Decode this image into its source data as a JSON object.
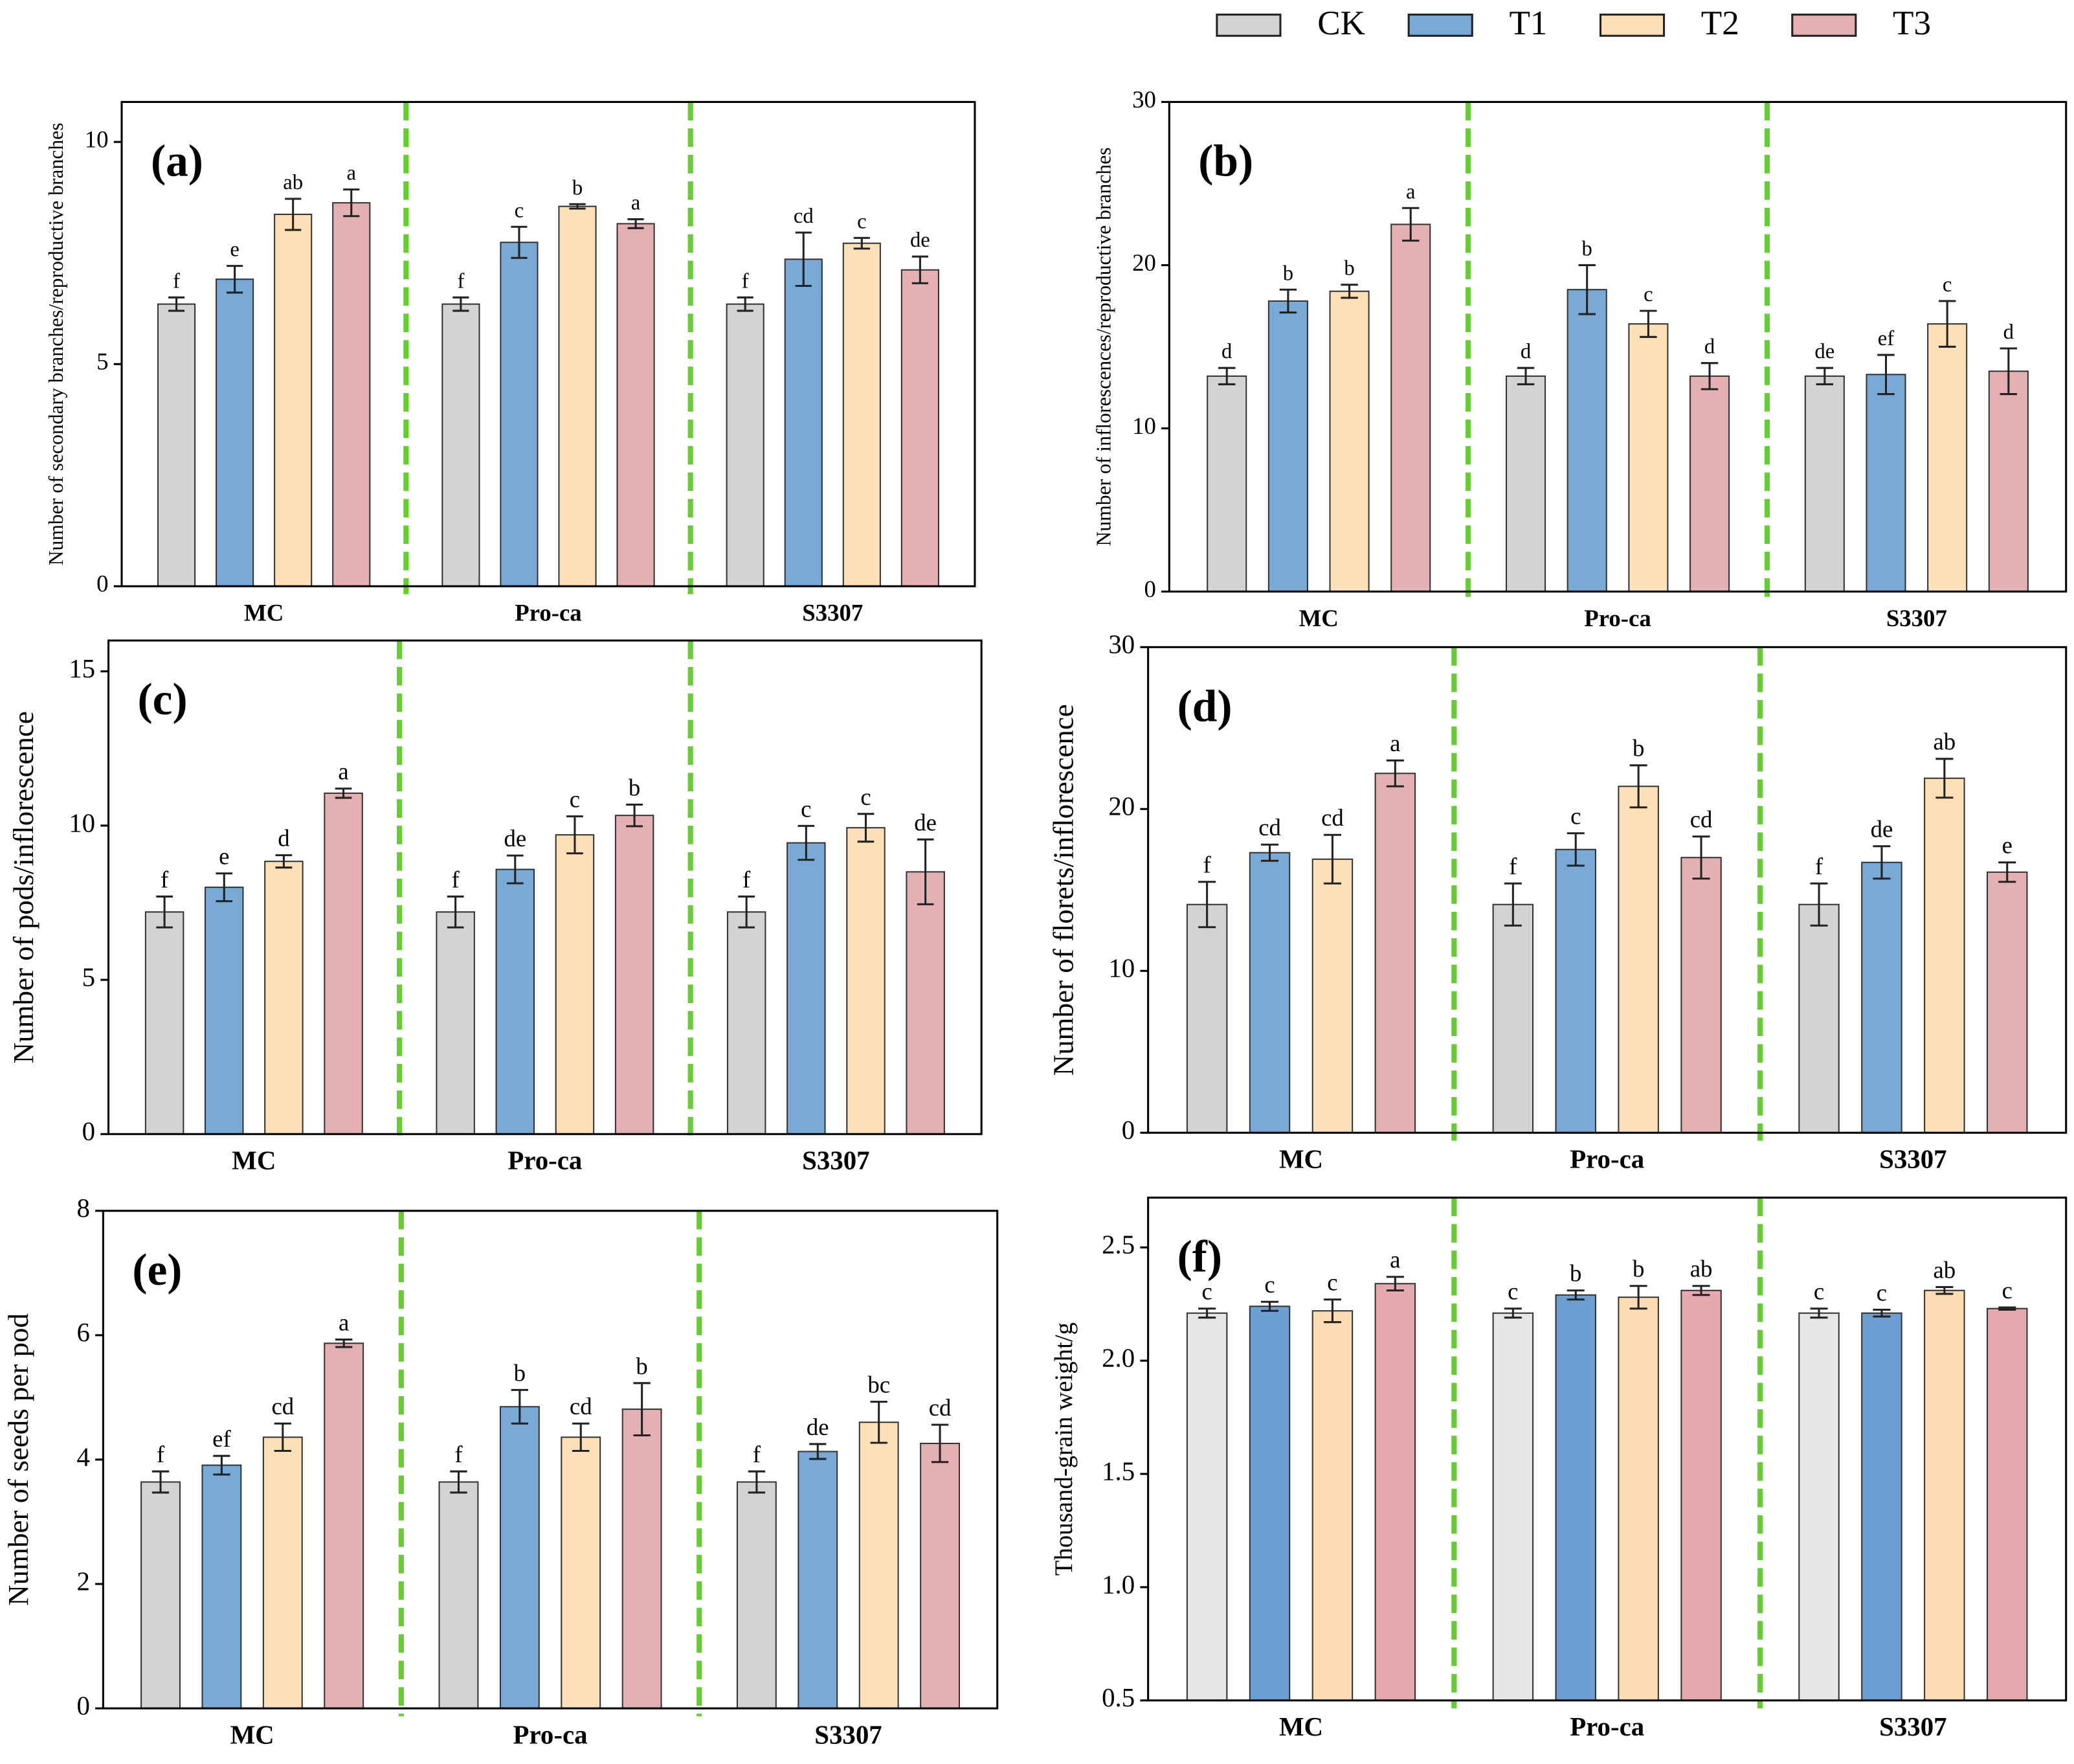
{
  "chart_data": [
    {
      "type": "bar",
      "panel": "(a)",
      "ylabel": "Number of secondary branches/reproductive branches",
      "categories": [
        "MC",
        "Pro-ca",
        "S3307"
      ],
      "ylim": [
        0,
        10.9
      ],
      "yticks": [
        0,
        5,
        10
      ],
      "series": [
        {
          "name": "CK",
          "color": "#d3d3d3",
          "values": [
            6.35,
            6.35,
            6.35
          ],
          "errors": [
            0.15,
            0.15,
            0.15
          ],
          "letters": [
            "f",
            "f",
            "f"
          ]
        },
        {
          "name": "T1",
          "color": "#79a9d6",
          "values": [
            6.91,
            7.74,
            7.36
          ],
          "errors": [
            0.3,
            0.35,
            0.6
          ],
          "letters": [
            "e",
            "c",
            "cd"
          ]
        },
        {
          "name": "T2",
          "color": "#fde0b8",
          "values": [
            8.37,
            8.55,
            7.72
          ],
          "errors": [
            0.35,
            0.05,
            0.12
          ],
          "letters": [
            "ab",
            "b",
            "c"
          ]
        },
        {
          "name": "T3",
          "color": "#e4b0b3",
          "values": [
            8.63,
            8.16,
            7.12
          ],
          "errors": [
            0.3,
            0.1,
            0.3
          ],
          "letters": [
            "a",
            "a",
            "de"
          ]
        }
      ]
    },
    {
      "type": "bar",
      "panel": "(b)",
      "ylabel": "Number of inflorescences/reproductive branches",
      "categories": [
        "MC",
        "Pro-ca",
        "S3307"
      ],
      "ylim": [
        0,
        30
      ],
      "yticks": [
        0,
        10,
        20,
        30
      ],
      "series": [
        {
          "color": "#d3d3d3",
          "values": [
            13.2,
            13.2,
            13.2
          ],
          "errors": [
            0.5,
            0.5,
            0.5
          ],
          "letters": [
            "d",
            "d",
            "de"
          ]
        },
        {
          "color": "#79a9d6",
          "values": [
            17.8,
            18.5,
            13.3
          ],
          "errors": [
            0.7,
            1.5,
            1.2
          ],
          "letters": [
            "b",
            "b",
            "ef"
          ]
        },
        {
          "color": "#fde0b8",
          "values": [
            18.4,
            16.4,
            16.4
          ],
          "errors": [
            0.4,
            0.8,
            1.4
          ],
          "letters": [
            "b",
            "c",
            "c"
          ]
        },
        {
          "color": "#e4b0b3",
          "values": [
            22.5,
            13.2,
            13.5
          ],
          "errors": [
            1,
            0.8,
            1.4
          ],
          "letters": [
            "a",
            "d",
            "d"
          ]
        }
      ]
    },
    {
      "type": "bar",
      "panel": "(c)",
      "ylabel": "Number of pods/inflorescence",
      "categories": [
        "MC",
        "Pro-ca",
        "S3307"
      ],
      "ylim": [
        0,
        16
      ],
      "yticks": [
        0,
        5,
        10,
        15
      ],
      "series": [
        {
          "color": "#d3d3d3",
          "values": [
            7.2,
            7.2,
            7.2
          ],
          "errors": [
            0.5,
            0.5,
            0.5
          ],
          "letters": [
            "f",
            "f",
            "f"
          ]
        },
        {
          "color": "#79a9d6",
          "values": [
            8.0,
            8.58,
            9.44
          ],
          "errors": [
            0.45,
            0.45,
            0.55
          ],
          "letters": [
            "e",
            "de",
            "c"
          ]
        },
        {
          "color": "#fde0b8",
          "values": [
            8.84,
            9.7,
            9.93
          ],
          "errors": [
            0.2,
            0.6,
            0.45
          ],
          "letters": [
            "d",
            "c",
            "c"
          ]
        },
        {
          "color": "#e4b0b3",
          "values": [
            11.05,
            10.33,
            8.5
          ],
          "errors": [
            0.15,
            0.35,
            1.05
          ],
          "letters": [
            "a",
            "b",
            "de"
          ]
        }
      ]
    },
    {
      "type": "bar",
      "panel": "(d)",
      "ylabel": "Number of florets/inflorescence",
      "categories": [
        "MC",
        "Pro-ca",
        "S3307"
      ],
      "ylim": [
        0,
        30
      ],
      "yticks": [
        0,
        10,
        20,
        30
      ],
      "series": [
        {
          "color": "#d3d3d3",
          "values": [
            14.1,
            14.1,
            14.1
          ],
          "errors": [
            1.4,
            1.3,
            1.3
          ],
          "letters": [
            "f",
            "f",
            "f"
          ]
        },
        {
          "color": "#79a9d6",
          "values": [
            17.3,
            17.5,
            16.7
          ],
          "errors": [
            0.5,
            1,
            1
          ],
          "letters": [
            "cd",
            "c",
            "de"
          ]
        },
        {
          "color": "#fde0b8",
          "values": [
            16.9,
            21.4,
            21.9
          ],
          "errors": [
            1.5,
            1.3,
            1.2
          ],
          "letters": [
            "cd",
            "b",
            "ab"
          ]
        },
        {
          "color": "#e4b0b3",
          "values": [
            22.2,
            17.0,
            16.1
          ],
          "errors": [
            0.8,
            1.3,
            0.6
          ],
          "letters": [
            "a",
            "cd",
            "e"
          ]
        }
      ]
    },
    {
      "type": "bar",
      "panel": "(e)",
      "ylabel": "Number of seeds per pod",
      "categories": [
        "MC",
        "Pro-ca",
        "S3307"
      ],
      "ylim": [
        0,
        8
      ],
      "yticks": [
        0,
        2,
        4,
        6,
        8
      ],
      "series": [
        {
          "color": "#d3d3d3",
          "values": [
            3.64,
            3.64,
            3.64
          ],
          "errors": [
            0.17,
            0.17,
            0.17
          ],
          "letters": [
            "f",
            "f",
            "f"
          ]
        },
        {
          "color": "#79a9d6",
          "values": [
            3.91,
            4.85,
            4.13
          ],
          "errors": [
            0.15,
            0.27,
            0.12
          ],
          "letters": [
            "ef",
            "b",
            "de"
          ]
        },
        {
          "color": "#fde0b8",
          "values": [
            4.36,
            4.36,
            4.6
          ],
          "errors": [
            0.22,
            0.22,
            0.33
          ],
          "letters": [
            "cd",
            "cd",
            "bc"
          ]
        },
        {
          "color": "#e4b0b3",
          "values": [
            5.87,
            4.81,
            4.26
          ],
          "errors": [
            0.06,
            0.42,
            0.3
          ],
          "letters": [
            "a",
            "b",
            "cd"
          ]
        }
      ]
    },
    {
      "type": "bar",
      "panel": "(f)",
      "ylabel": "Thousand-grain weight/g",
      "categories": [
        "MC",
        "Pro-ca",
        "S3307"
      ],
      "ylim": [
        0.5,
        2.72
      ],
      "yticks": [
        0.5,
        {
          "value": 1,
          "label": "1.0"
        },
        1.5,
        {
          "value": 2,
          "label": "2.0"
        },
        2.5
      ],
      "series": [
        {
          "color": "#e6e6e6",
          "values": [
            2.21,
            2.21,
            2.21
          ],
          "errors": [
            0.02,
            0.02,
            0.02
          ],
          "letters": [
            "c",
            "c",
            "c"
          ]
        },
        {
          "color": "#6d9fd3",
          "values": [
            2.24,
            2.29,
            2.21
          ],
          "errors": [
            0.02,
            0.02,
            0.015
          ],
          "letters": [
            "c",
            "b",
            "c"
          ]
        },
        {
          "color": "#fddcb4",
          "values": [
            2.22,
            2.28,
            2.31
          ],
          "errors": [
            0.05,
            0.05,
            0.015
          ],
          "letters": [
            "c",
            "b",
            "ab"
          ]
        },
        {
          "color": "#e6a9ad",
          "values": [
            2.34,
            2.31,
            2.23
          ],
          "errors": [
            0.03,
            0.02,
            0.005
          ],
          "letters": [
            "a",
            "ab",
            "c"
          ]
        }
      ]
    }
  ]
}
